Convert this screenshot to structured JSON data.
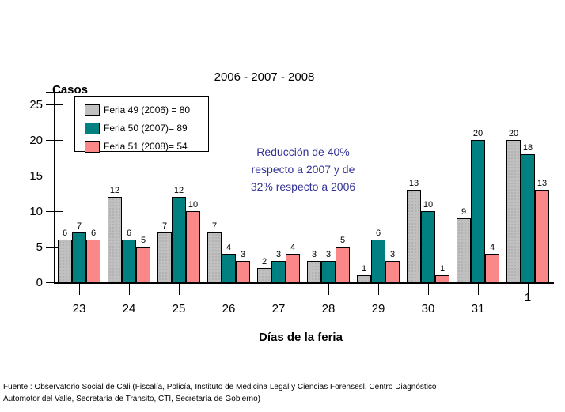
{
  "chart_data": {
    "type": "bar",
    "title": "2006 - 2007 - 2008",
    "ylabel": "Casos",
    "xlabel": "Días de la feria",
    "ylim": [
      0,
      25
    ],
    "yticks": [
      0,
      5,
      10,
      15,
      20,
      25
    ],
    "grid": false,
    "legend_position": "top-left",
    "categories": [
      "23",
      "24",
      "25",
      "26",
      "27",
      "28",
      "29",
      "30",
      "31",
      "1"
    ],
    "series": [
      {
        "name": "Feria 49 (2006) = 80",
        "color": "#c0c0c0",
        "values": [
          6,
          12,
          7,
          7,
          2,
          3,
          1,
          13,
          9,
          20
        ]
      },
      {
        "name": "Feria 50 (2007)= 89",
        "color": "#008080",
        "values": [
          7,
          6,
          12,
          4,
          3,
          3,
          6,
          10,
          20,
          18
        ]
      },
      {
        "name": "Feria 51 (2008)= 54",
        "color": "#fb8888",
        "values": [
          6,
          5,
          10,
          3,
          4,
          5,
          3,
          1,
          4,
          13
        ]
      }
    ]
  },
  "annotation": {
    "color": "#333399",
    "lines": [
      "Reducción de 40%",
      "respecto a 2007 y de",
      "32% respecto a 2006"
    ]
  },
  "footer": {
    "lines": [
      "Fuente : Observatorio Social de Cali (Fiscalía, Policía, Instituto de Medicina Legal y Ciencias Forensesl, Centro Diagnóstico",
      "Automotor del Valle, Secretaría de Tránsito, CTI, Secretaría de Gobierno)"
    ]
  }
}
